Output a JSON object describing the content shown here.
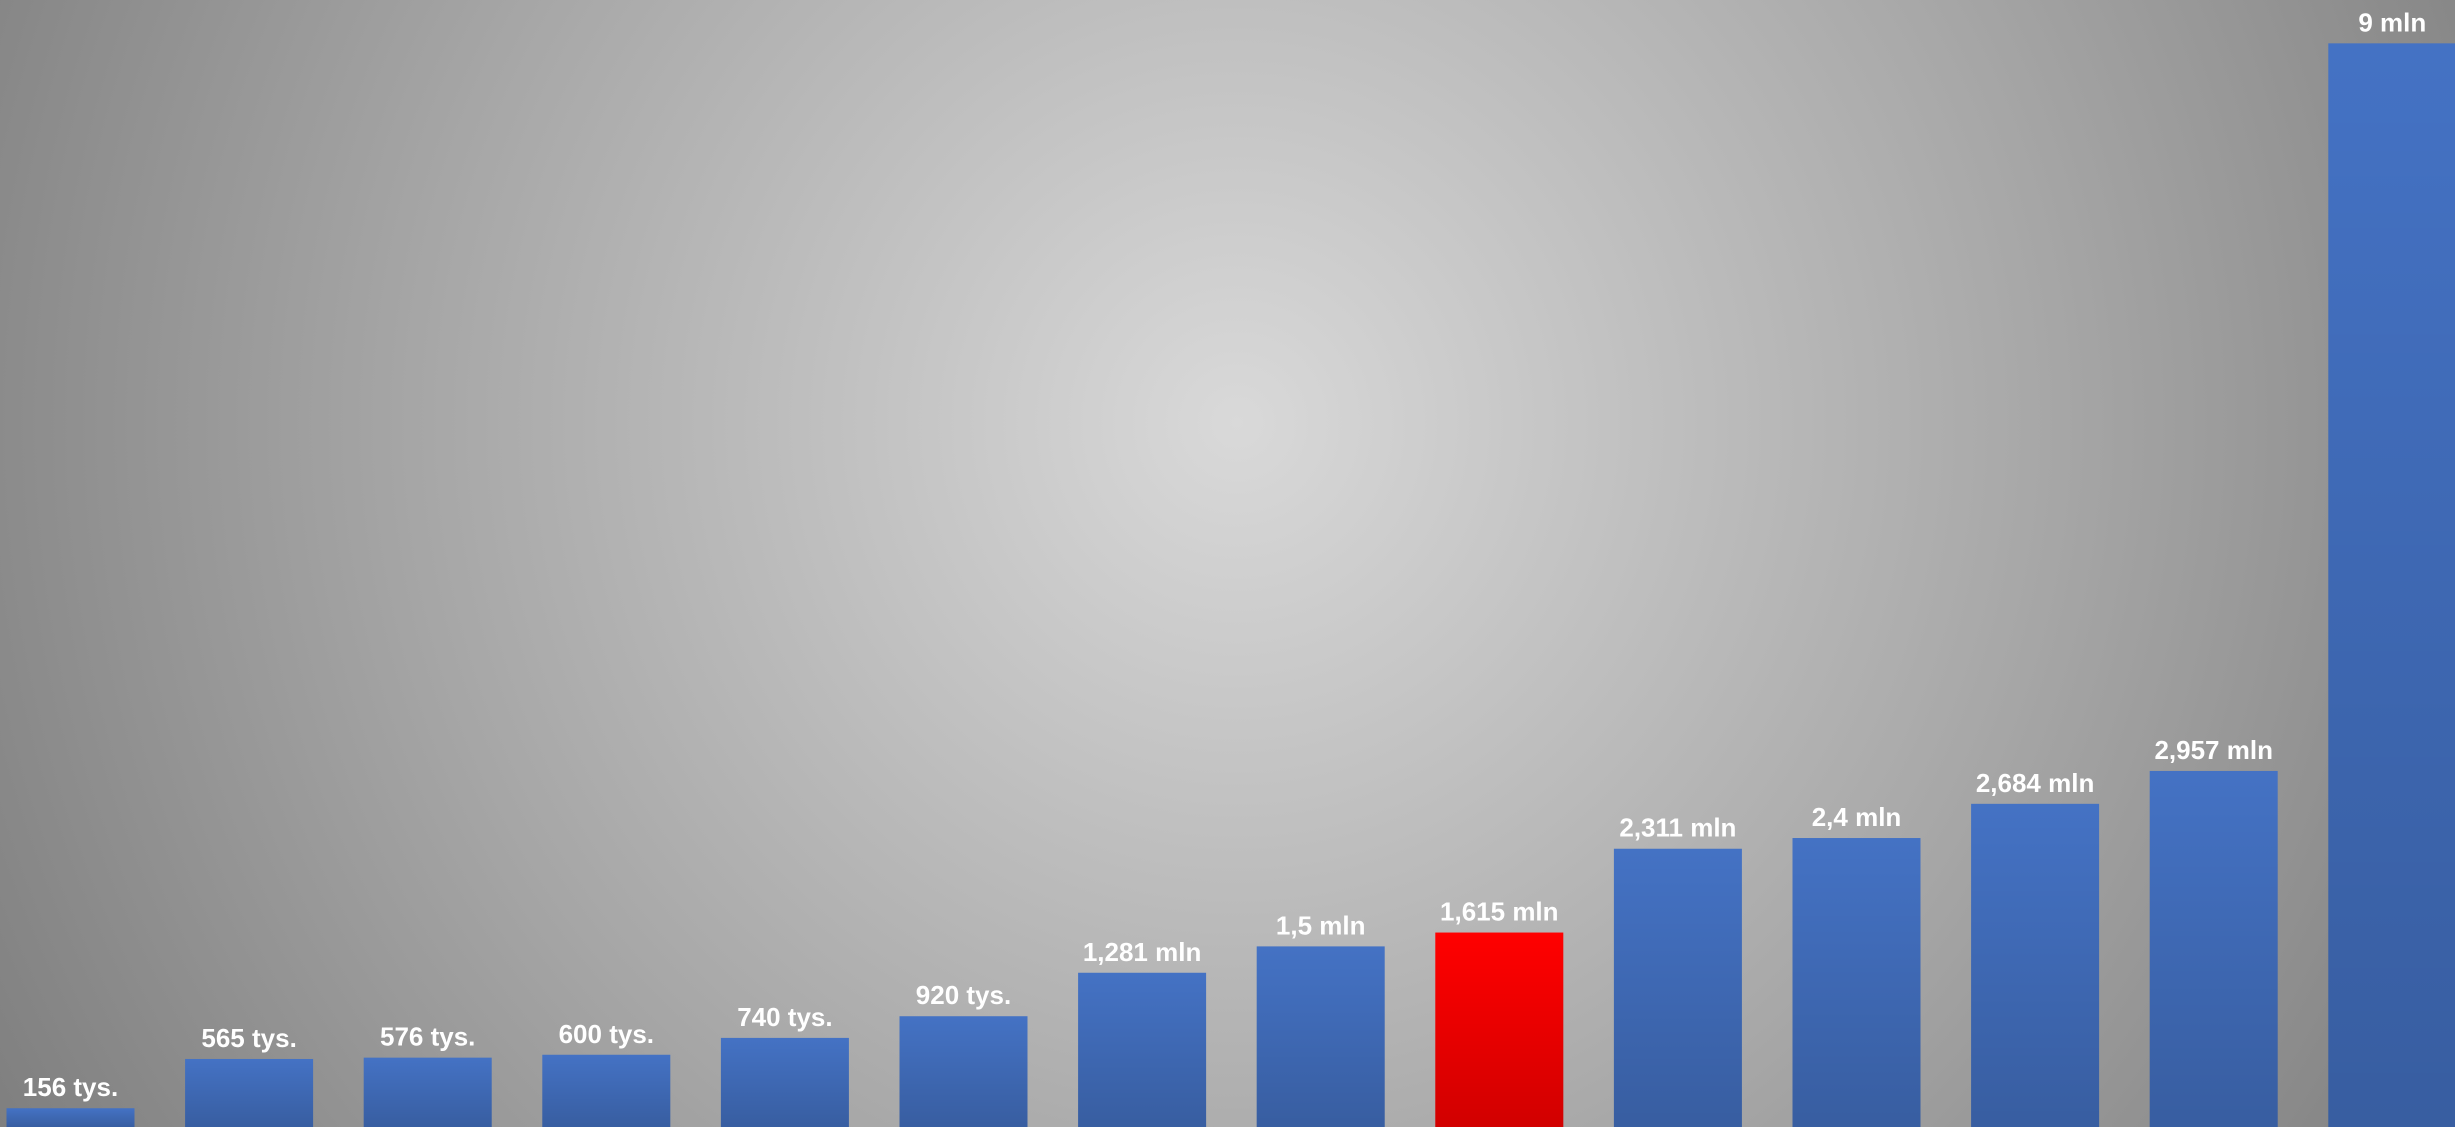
{
  "chart_data": {
    "type": "bar",
    "values": [
      156000,
      565000,
      576000,
      600000,
      740000,
      920000,
      1281000,
      1500000,
      1615000,
      2311000,
      2400000,
      2684000,
      2957000,
      9000000
    ],
    "value_labels": [
      "156 tys.",
      "565 tys.",
      "576 tys.",
      "600 tys.",
      "740 tys.",
      "920 tys.",
      "1,281 mln",
      "1,5 mln",
      "1,615 mln",
      "2,311 mln",
      "2,4 mln",
      "2,684 mln",
      "2,957 mln",
      "9 mln"
    ],
    "colors": [
      "#4472c4",
      "#4472c4",
      "#4472c4",
      "#4472c4",
      "#4472c4",
      "#4472c4",
      "#4472c4",
      "#4472c4",
      "#ff0000",
      "#4472c4",
      "#4472c4",
      "#4472c4",
      "#4472c4",
      "#4472c4"
    ],
    "ylim": [
      0,
      9360000
    ]
  }
}
